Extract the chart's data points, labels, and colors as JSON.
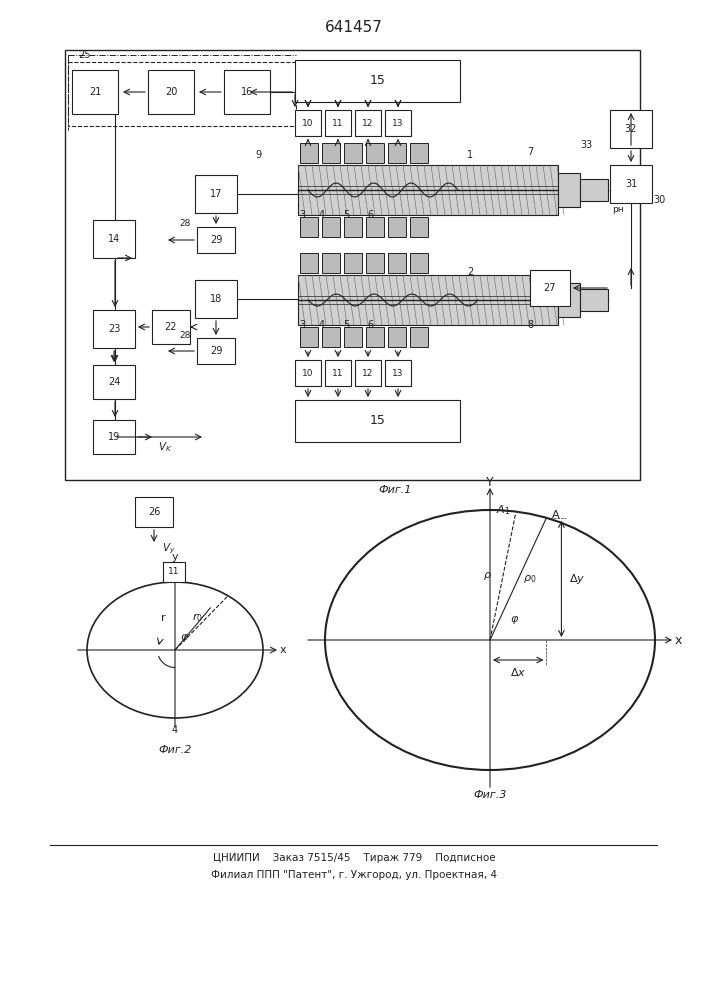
{
  "title": "641457",
  "fig_caption1": "Фиг.1",
  "fig_caption2": "Фиг.2",
  "fig_caption3": "Фиг.3",
  "footer_line1": "ЦНИИПИ    Заказ 7515/45    Тираж 779    Подписное",
  "footer_line2": "Филиал ППП \"Патент\", г. Ужгород, ул. Проектная, 4",
  "bg_color": "#ffffff",
  "line_color": "#222222"
}
